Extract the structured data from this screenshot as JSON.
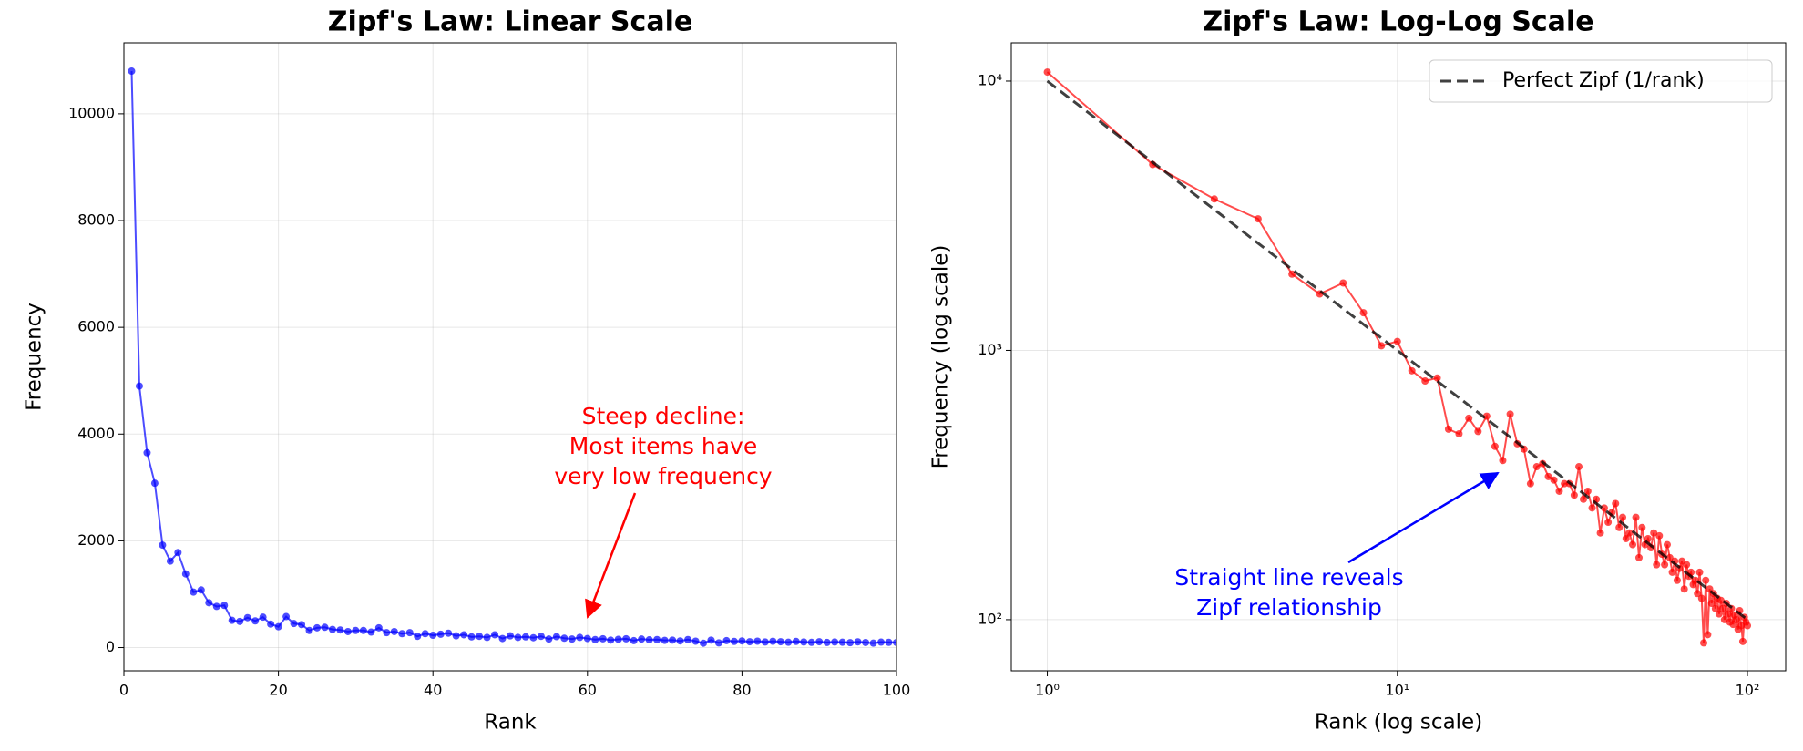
{
  "chart_data": [
    {
      "type": "line",
      "title": "Zipf's Law: Linear Scale",
      "xlabel": "Rank",
      "ylabel": "Frequency",
      "xlim": [
        0,
        100
      ],
      "ylim": [
        -435,
        11330
      ],
      "xticks": [
        0,
        20,
        40,
        60,
        80,
        100
      ],
      "yticks": [
        0,
        2000,
        4000,
        6000,
        8000,
        10000
      ],
      "grid": true,
      "series": [
        {
          "color": "#0000ff",
          "marker": true,
          "x": [
            1,
            2,
            3,
            4,
            5,
            6,
            7,
            8,
            9,
            10,
            11,
            12,
            13,
            14,
            15,
            16,
            17,
            18,
            19,
            20,
            21,
            22,
            23,
            24,
            25,
            26,
            27,
            28,
            29,
            30,
            31,
            32,
            33,
            34,
            35,
            36,
            37,
            38,
            39,
            40,
            41,
            42,
            43,
            44,
            45,
            46,
            47,
            48,
            49,
            50,
            51,
            52,
            53,
            54,
            55,
            56,
            57,
            58,
            59,
            60,
            61,
            62,
            63,
            64,
            65,
            66,
            67,
            68,
            69,
            70,
            71,
            72,
            73,
            74,
            75,
            76,
            77,
            78,
            79,
            80,
            81,
            82,
            83,
            84,
            85,
            86,
            87,
            88,
            89,
            90,
            91,
            92,
            93,
            94,
            95,
            96,
            97,
            98,
            99,
            100
          ],
          "values": [
            10800,
            4900,
            3650,
            3080,
            1920,
            1620,
            1780,
            1380,
            1040,
            1080,
            840,
            770,
            790,
            510,
            490,
            560,
            500,
            570,
            440,
            390,
            580,
            450,
            430,
            320,
            370,
            380,
            340,
            330,
            300,
            320,
            320,
            290,
            370,
            280,
            300,
            260,
            280,
            210,
            260,
            230,
            250,
            270,
            220,
            240,
            200,
            210,
            190,
            240,
            170,
            220,
            190,
            200,
            185,
            210,
            160,
            205,
            175,
            160,
            190,
            170,
            150,
            165,
            140,
            155,
            165,
            130,
            160,
            145,
            150,
            135,
            140,
            125,
            150,
            120,
            82,
            140,
            88,
            130,
            115,
            125,
            110,
            120,
            105,
            118,
            110,
            100,
            115,
            105,
            98,
            110,
            96,
            104,
            100,
            92,
            108,
            95,
            83,
            102,
            98,
            95
          ]
        }
      ],
      "annotations": [
        {
          "text": "Steep decline:\nMost items have\nvery low frequency",
          "color": "#ff0000"
        }
      ]
    },
    {
      "type": "line",
      "title": "Zipf's Law: Log-Log Scale",
      "xlabel": "Rank (log scale)",
      "ylabel": "Frequency (log scale)",
      "xscale": "log",
      "yscale": "log",
      "xlim": [
        0.789,
        128.6
      ],
      "ylim": [
        64.6,
        13870
      ],
      "xticks": [
        {
          "value": 1,
          "label": "10⁰"
        },
        {
          "value": 10,
          "label": "10¹"
        },
        {
          "value": 100,
          "label": "10²"
        }
      ],
      "yticks": [
        {
          "value": 100,
          "label": "10²"
        },
        {
          "value": 1000,
          "label": "10³"
        },
        {
          "value": 10000,
          "label": "10⁴"
        }
      ],
      "grid": true,
      "legend": "upper right",
      "series": [
        {
          "color": "#ff0000",
          "marker": true,
          "x": [
            1,
            2,
            3,
            4,
            5,
            6,
            7,
            8,
            9,
            10,
            11,
            12,
            13,
            14,
            15,
            16,
            17,
            18,
            19,
            20,
            21,
            22,
            23,
            24,
            25,
            26,
            27,
            28,
            29,
            30,
            31,
            32,
            33,
            34,
            35,
            36,
            37,
            38,
            39,
            40,
            41,
            42,
            43,
            44,
            45,
            46,
            47,
            48,
            49,
            50,
            51,
            52,
            53,
            54,
            55,
            56,
            57,
            58,
            59,
            60,
            61,
            62,
            63,
            64,
            65,
            66,
            67,
            68,
            69,
            70,
            71,
            72,
            73,
            74,
            75,
            76,
            77,
            78,
            79,
            80,
            81,
            82,
            83,
            84,
            85,
            86,
            87,
            88,
            89,
            90,
            91,
            92,
            93,
            94,
            95,
            96,
            97,
            98,
            99,
            100
          ],
          "values": [
            10800,
            4900,
            3650,
            3080,
            1920,
            1620,
            1780,
            1380,
            1040,
            1080,
            840,
            770,
            790,
            510,
            490,
            560,
            500,
            570,
            440,
            390,
            580,
            450,
            430,
            320,
            370,
            380,
            340,
            330,
            300,
            320,
            320,
            290,
            370,
            280,
            300,
            260,
            280,
            210,
            260,
            230,
            250,
            270,
            220,
            240,
            200,
            210,
            190,
            240,
            170,
            220,
            190,
            200,
            185,
            210,
            160,
            205,
            175,
            160,
            190,
            170,
            150,
            165,
            140,
            155,
            165,
            130,
            160,
            145,
            150,
            135,
            140,
            125,
            150,
            120,
            82,
            140,
            88,
            130,
            115,
            125,
            110,
            120,
            105,
            118,
            110,
            100,
            115,
            105,
            98,
            110,
            96,
            104,
            100,
            92,
            108,
            95,
            83,
            102,
            98,
            95
          ]
        },
        {
          "name": "Perfect Zipf (1/rank)",
          "color": "#000000",
          "linestyle": "dashed",
          "x": [
            1,
            100
          ],
          "values": [
            10000,
            100
          ]
        }
      ],
      "annotations": [
        {
          "text": "Straight line reveals\nZipf relationship",
          "color": "#0000ff"
        }
      ]
    }
  ]
}
